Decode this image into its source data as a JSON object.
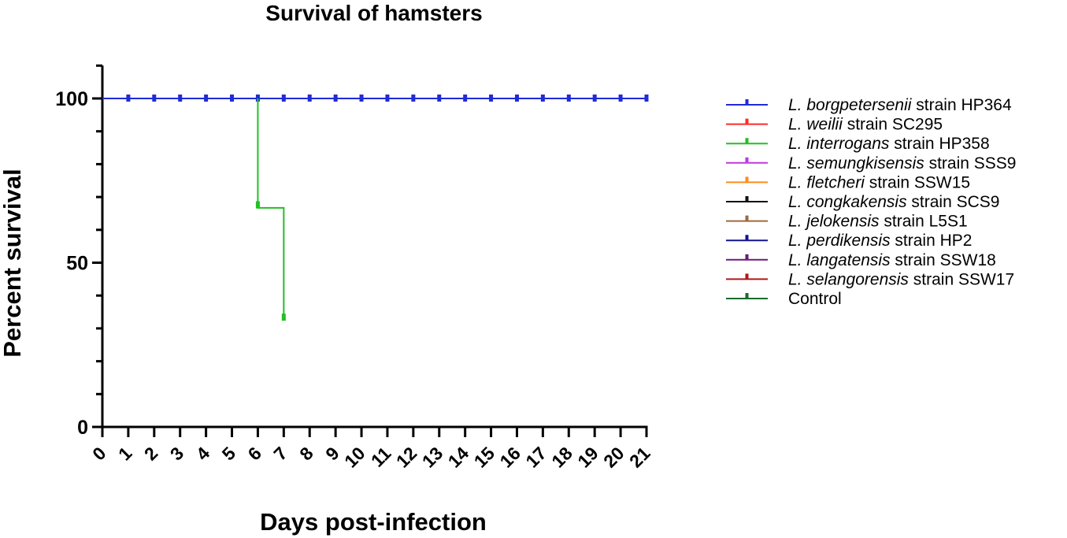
{
  "chart_data": {
    "type": "line",
    "title": "Survival of hamsters",
    "xlabel": "Days post-infection",
    "ylabel": "Percent survival",
    "xlim": [
      0,
      21
    ],
    "ylim": [
      0,
      110
    ],
    "x_ticks": [
      0,
      1,
      2,
      3,
      4,
      5,
      6,
      7,
      8,
      9,
      10,
      11,
      12,
      13,
      14,
      15,
      16,
      17,
      18,
      19,
      20,
      21
    ],
    "y_ticks": [
      0,
      50,
      100
    ],
    "grid": false,
    "legend_position": "right",
    "series": [
      {
        "name_italic": "L. borgpetersenii",
        "name_plain": " strain HP364",
        "color": "#1f2bd6",
        "steps": [
          [
            0,
            100
          ],
          [
            21,
            100
          ]
        ],
        "censored": [
          [
            1,
            100
          ],
          [
            2,
            100
          ],
          [
            3,
            100
          ],
          [
            4,
            100
          ],
          [
            5,
            100
          ],
          [
            6,
            100
          ],
          [
            7,
            100
          ],
          [
            8,
            100
          ],
          [
            9,
            100
          ],
          [
            10,
            100
          ],
          [
            11,
            100
          ],
          [
            12,
            100
          ],
          [
            13,
            100
          ],
          [
            14,
            100
          ],
          [
            15,
            100
          ],
          [
            16,
            100
          ],
          [
            17,
            100
          ],
          [
            18,
            100
          ],
          [
            19,
            100
          ],
          [
            20,
            100
          ],
          [
            21,
            100
          ]
        ]
      },
      {
        "name_italic": "L. weilii",
        "name_plain": "  strain SC295",
        "color": "#ff2a2a",
        "steps": [],
        "censored": []
      },
      {
        "name_italic": "L. interrogans",
        "name_plain": " strain HP358",
        "color": "#22c022",
        "steps": [
          [
            6,
            100
          ],
          [
            6,
            66.7
          ],
          [
            7,
            66.7
          ],
          [
            7,
            33.3
          ]
        ],
        "censored": [
          [
            6,
            67.5
          ],
          [
            7,
            33.3
          ]
        ]
      },
      {
        "name_italic": "L. semungkisensis",
        "name_plain": " strain SSS9",
        "color": "#c038e0",
        "steps": [],
        "censored": []
      },
      {
        "name_italic": "L. fletcheri",
        "name_plain": " strain SSW15",
        "color": "#ff8c1a",
        "steps": [],
        "censored": []
      },
      {
        "name_italic": "L. congkakensis",
        "name_plain": " strain SCS9",
        "color": "#111111",
        "steps": [],
        "censored": []
      },
      {
        "name_italic": "L. jelokensis",
        "name_plain": " strain L5S1",
        "color": "#9c6a3c",
        "steps": [],
        "censored": []
      },
      {
        "name_italic": "L. perdikensis",
        "name_plain": " strain HP2",
        "color": "#14148c",
        "steps": [],
        "censored": []
      },
      {
        "name_italic": "L. langatensis",
        "name_plain": " strain SSW18",
        "color": "#6a1a7a",
        "steps": [],
        "censored": []
      },
      {
        "name_italic": "L. selangorensis",
        "name_plain": " strain SSW17",
        "color": "#b01818",
        "steps": [],
        "censored": []
      },
      {
        "name_italic": "",
        "name_plain": "Control",
        "color": "#1a6b2a",
        "steps": [],
        "censored": []
      }
    ]
  }
}
